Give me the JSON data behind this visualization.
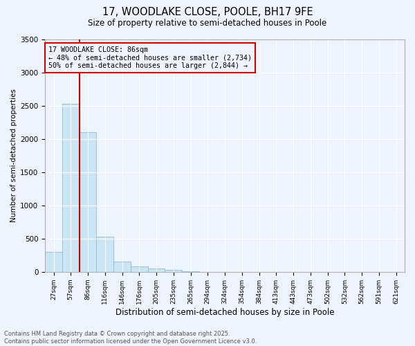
{
  "title_line1": "17, WOODLAKE CLOSE, POOLE, BH17 9FE",
  "title_line2": "Size of property relative to semi-detached houses in Poole",
  "xlabel": "Distribution of semi-detached houses by size in Poole",
  "ylabel": "Number of semi-detached properties",
  "categories": [
    "27sqm",
    "57sqm",
    "86sqm",
    "116sqm",
    "146sqm",
    "176sqm",
    "205sqm",
    "235sqm",
    "265sqm",
    "294sqm",
    "324sqm",
    "354sqm",
    "384sqm",
    "413sqm",
    "443sqm",
    "473sqm",
    "502sqm",
    "532sqm",
    "562sqm",
    "591sqm",
    "621sqm"
  ],
  "values": [
    300,
    2530,
    2100,
    530,
    150,
    80,
    55,
    30,
    5,
    2,
    0,
    0,
    0,
    0,
    0,
    0,
    0,
    0,
    0,
    0,
    0
  ],
  "bar_color": "#cce5f5",
  "bar_edge_color": "#90bcd8",
  "property_index": 2,
  "property_label": "17 WOODLAKE CLOSE: 86sqm",
  "annotation_line1": "← 48% of semi-detached houses are smaller (2,734)",
  "annotation_line2": "50% of semi-detached houses are larger (2,844) →",
  "red_line_color": "#cc0000",
  "ylim": [
    0,
    3500
  ],
  "yticks": [
    0,
    500,
    1000,
    1500,
    2000,
    2500,
    3000,
    3500
  ],
  "footer_line1": "Contains HM Land Registry data © Crown copyright and database right 2025.",
  "footer_line2": "Contains public sector information licensed under the Open Government Licence v3.0.",
  "background_color": "#eef4fb",
  "grid_color": "#ffffff"
}
